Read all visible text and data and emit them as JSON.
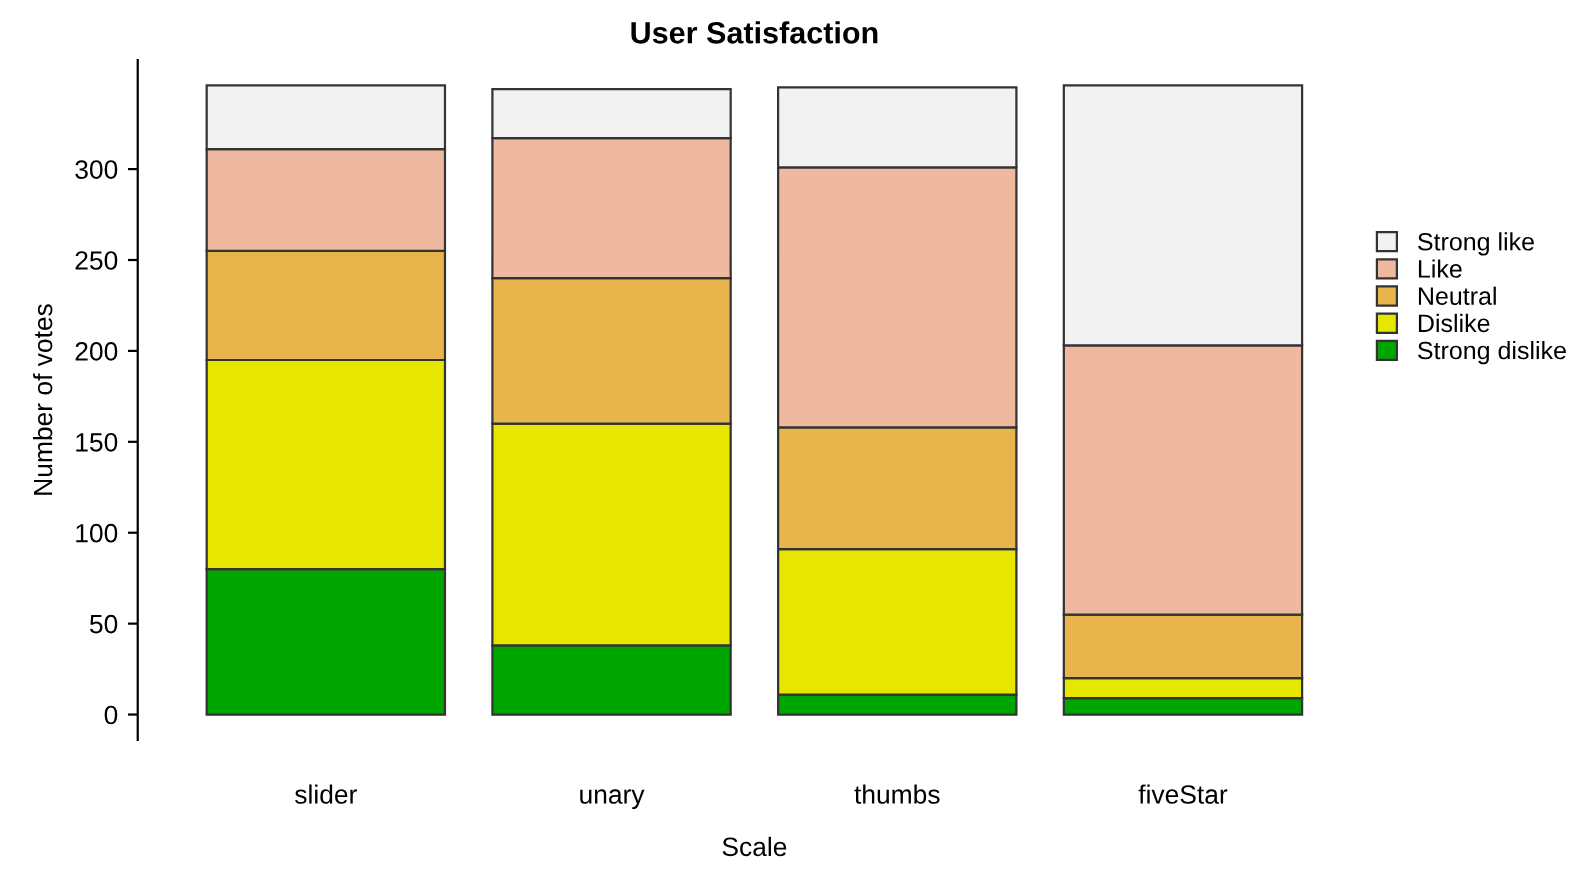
{
  "chart_data": {
    "type": "bar",
    "title": "User Satisfaction",
    "xlabel": "Scale",
    "ylabel": "Number of votes",
    "categories": [
      "slider",
      "unary",
      "thumbs",
      "fiveStar"
    ],
    "stacked": true,
    "series": [
      {
        "name": "Strong dislike",
        "color": "#00a600",
        "values": [
          80,
          38,
          11,
          9
        ]
      },
      {
        "name": "Dislike",
        "color": "#e6e600",
        "values": [
          115,
          122,
          80,
          11
        ]
      },
      {
        "name": "Neutral",
        "color": "#e8b54d",
        "values": [
          60,
          80,
          67,
          35
        ]
      },
      {
        "name": "Like",
        "color": "#efb9a0",
        "values": [
          56,
          77,
          143,
          148
        ]
      },
      {
        "name": "Strong like",
        "color": "#f2f2f2",
        "values": [
          35,
          27,
          44,
          143
        ]
      }
    ],
    "ylim": [
      -14,
      360
    ],
    "yticks": [
      0,
      50,
      100,
      150,
      200,
      250,
      300
    ],
    "grid": false,
    "legend": "right"
  }
}
